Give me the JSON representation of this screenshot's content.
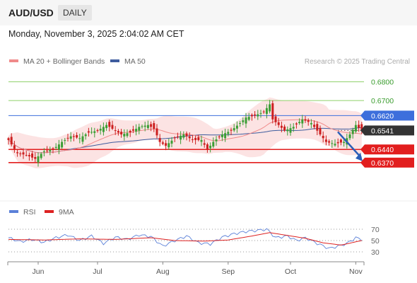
{
  "header": {
    "symbol": "AUD/USD",
    "timeframe": "DAILY"
  },
  "datetime": "Monday, November 3, 2025 2:04:02 AM CET",
  "colors": {
    "bull": "#3b9e35",
    "bear": "#cc1f1f",
    "ma20": "#f08a8a",
    "band": "#fbd9d9",
    "ma50": "#3e5c9e",
    "support": "#e21e1e",
    "pivot": "#3d6fdc",
    "resistance": "#8fd06a",
    "price_tag": "#333333",
    "rsi": "#5b80d8",
    "rsi_ma": "#dd2222"
  },
  "price_chart": {
    "legend": [
      {
        "name": "MA 20 + Bollinger Bands",
        "color": "#f08a8a"
      },
      {
        "name": "MA 50",
        "color": "#3e5c9e"
      }
    ],
    "credit": "Research © 2025 Trading Central",
    "ylim": [
      0.62,
      0.687
    ],
    "levels": [
      {
        "label": "0.6800",
        "value": 0.68,
        "type": "resistance",
        "tag": "text"
      },
      {
        "label": "0.6700",
        "value": 0.67,
        "type": "resistance",
        "tag": "text"
      },
      {
        "label": "0.6620",
        "value": 0.662,
        "type": "pivot",
        "tag": "box"
      },
      {
        "label": "0.6541",
        "value": 0.6541,
        "type": "price",
        "tag": "box"
      },
      {
        "label": "0.6440",
        "value": 0.644,
        "type": "support",
        "tag": "box"
      },
      {
        "label": "0.6370",
        "value": 0.637,
        "type": "support",
        "tag": "box"
      }
    ],
    "arrow": {
      "direction": "down",
      "from": 0.6541,
      "to": 0.637
    }
  },
  "chart_data": {
    "type": "candlestick",
    "x_ticks": [
      "Jun",
      "Jul",
      "Aug",
      "Sep",
      "Oct",
      "Nov"
    ],
    "x_tick_index": [
      10,
      30,
      52,
      74,
      95,
      117
    ],
    "price_anchors": [
      [
        0,
        0.649
      ],
      [
        3,
        0.642
      ],
      [
        6,
        0.641
      ],
      [
        9,
        0.639
      ],
      [
        12,
        0.643
      ],
      [
        15,
        0.644
      ],
      [
        18,
        0.648
      ],
      [
        21,
        0.651
      ],
      [
        24,
        0.65
      ],
      [
        27,
        0.653
      ],
      [
        30,
        0.654
      ],
      [
        33,
        0.657
      ],
      [
        36,
        0.654
      ],
      [
        38,
        0.652
      ],
      [
        41,
        0.653
      ],
      [
        44,
        0.656
      ],
      [
        47,
        0.657
      ],
      [
        49,
        0.655
      ],
      [
        51,
        0.648
      ],
      [
        53,
        0.646
      ],
      [
        56,
        0.65
      ],
      [
        59,
        0.652
      ],
      [
        62,
        0.649
      ],
      [
        65,
        0.649
      ],
      [
        67,
        0.644
      ],
      [
        69,
        0.648
      ],
      [
        72,
        0.652
      ],
      [
        75,
        0.654
      ],
      [
        78,
        0.658
      ],
      [
        80,
        0.661
      ],
      [
        83,
        0.662
      ],
      [
        86,
        0.664
      ],
      [
        88,
        0.668
      ],
      [
        89,
        0.66
      ],
      [
        91,
        0.657
      ],
      [
        93,
        0.654
      ],
      [
        96,
        0.656
      ],
      [
        99,
        0.66
      ],
      [
        102,
        0.658
      ],
      [
        105,
        0.652
      ],
      [
        107,
        0.648
      ],
      [
        110,
        0.647
      ],
      [
        113,
        0.648
      ],
      [
        115,
        0.652
      ],
      [
        117,
        0.657
      ],
      [
        119,
        0.6541
      ]
    ],
    "rsi": {
      "legend": [
        {
          "name": "RSI",
          "color": "#5b80d8"
        },
        {
          "name": "9MA",
          "color": "#dd2222"
        }
      ],
      "ticks": [
        70,
        50,
        30
      ],
      "ylim": [
        15,
        85
      ],
      "anchors": [
        [
          0,
          55
        ],
        [
          4,
          48
        ],
        [
          8,
          52
        ],
        [
          12,
          47
        ],
        [
          16,
          55
        ],
        [
          20,
          60
        ],
        [
          24,
          50
        ],
        [
          28,
          58
        ],
        [
          32,
          45
        ],
        [
          36,
          56
        ],
        [
          40,
          52
        ],
        [
          44,
          60
        ],
        [
          48,
          57
        ],
        [
          52,
          40
        ],
        [
          56,
          50
        ],
        [
          60,
          58
        ],
        [
          64,
          46
        ],
        [
          68,
          44
        ],
        [
          72,
          56
        ],
        [
          76,
          62
        ],
        [
          80,
          66
        ],
        [
          84,
          68
        ],
        [
          87,
          70
        ],
        [
          90,
          55
        ],
        [
          94,
          58
        ],
        [
          97,
          50
        ],
        [
          100,
          55
        ],
        [
          104,
          45
        ],
        [
          108,
          36
        ],
        [
          111,
          40
        ],
        [
          114,
          45
        ],
        [
          117,
          55
        ],
        [
          119,
          52
        ]
      ],
      "ma_anchors": [
        [
          0,
          52
        ],
        [
          12,
          51
        ],
        [
          24,
          53
        ],
        [
          36,
          52
        ],
        [
          48,
          55
        ],
        [
          56,
          50
        ],
        [
          66,
          49
        ],
        [
          74,
          51
        ],
        [
          82,
          58
        ],
        [
          88,
          64
        ],
        [
          94,
          59
        ],
        [
          100,
          54
        ],
        [
          106,
          46
        ],
        [
          112,
          42
        ],
        [
          119,
          50
        ]
      ]
    }
  }
}
